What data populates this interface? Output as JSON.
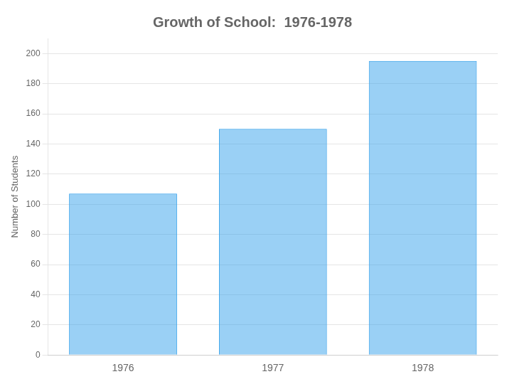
{
  "chart_data": {
    "type": "bar",
    "title": "Growth of School:  1976-1978",
    "ylabel": "Number of Students",
    "categories": [
      "1976",
      "1977",
      "1978"
    ],
    "values": [
      107,
      150,
      195
    ],
    "ylim": [
      0,
      210
    ],
    "yticks": [
      0,
      20,
      40,
      60,
      80,
      100,
      120,
      140,
      160,
      180,
      200
    ],
    "grid": true
  }
}
